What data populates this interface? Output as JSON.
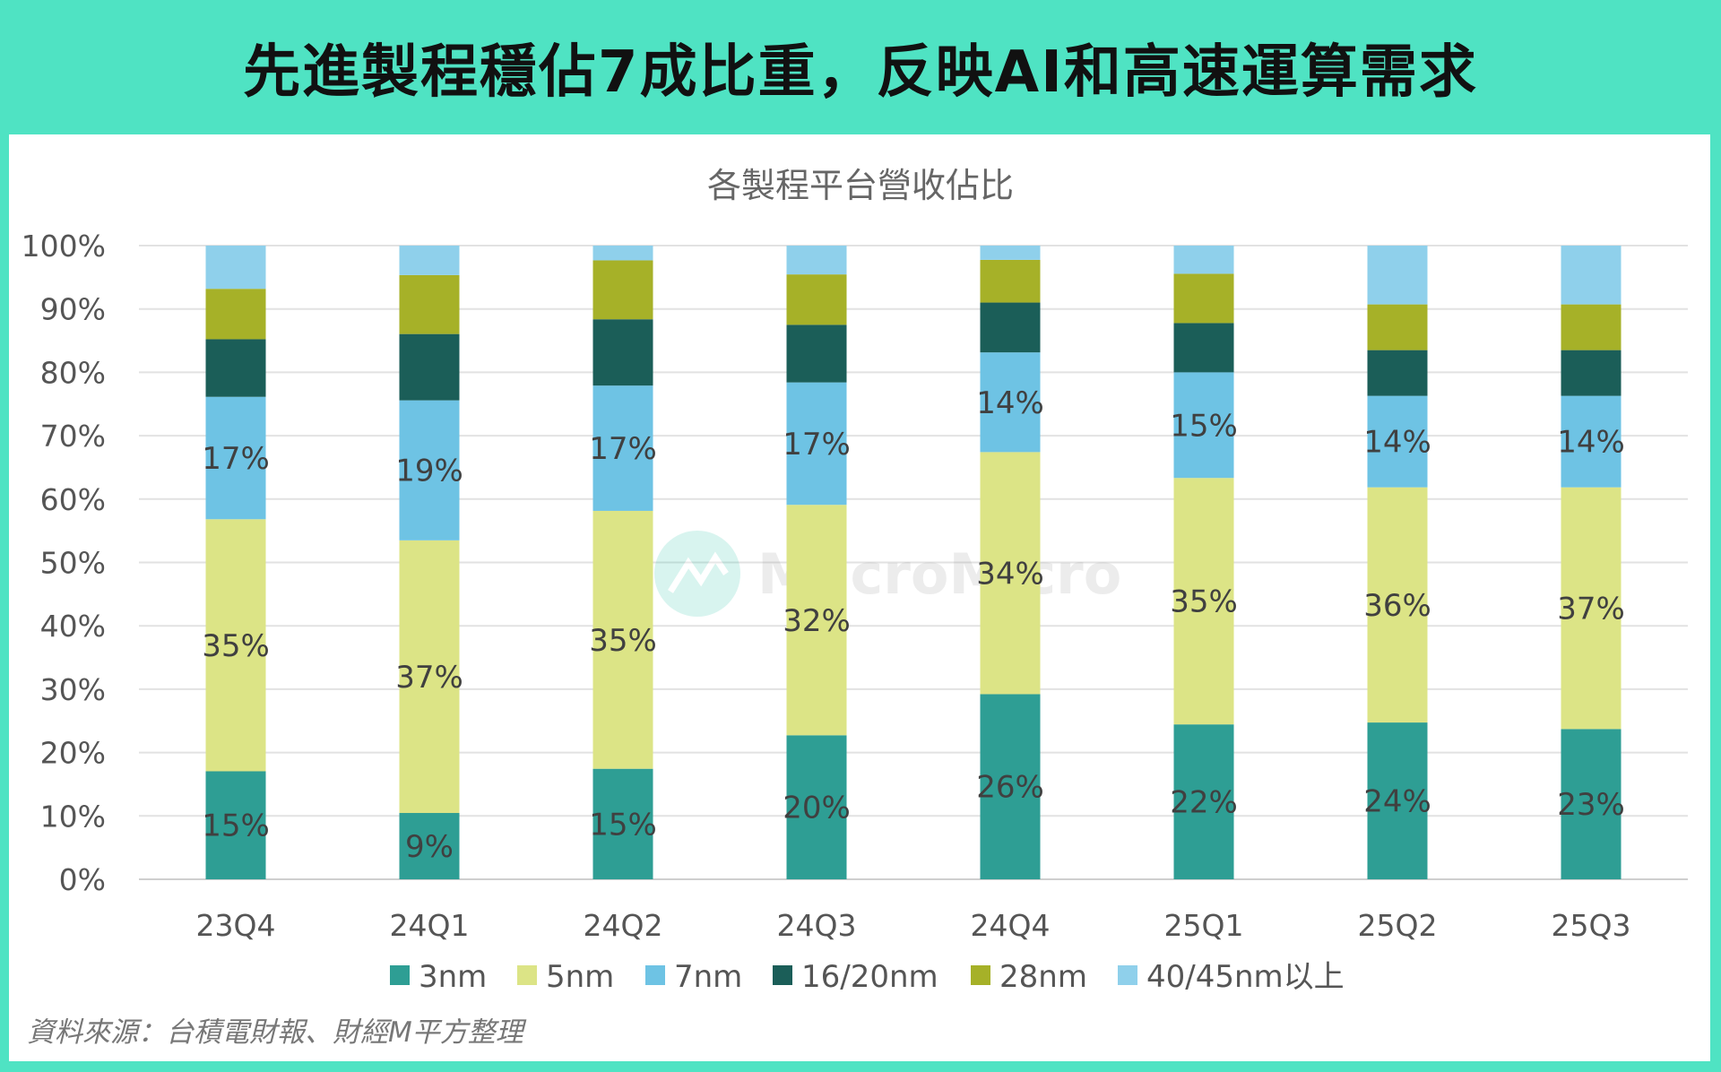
{
  "title": "先進製程穩佔7成比重，反映AI和高速運算需求",
  "source": "資料來源：台積電財報、財經M平方整理",
  "watermark": "MacroMicro",
  "colors": {
    "border": "#4fe3c3"
  },
  "chart_data": {
    "type": "bar",
    "stacked": "100%",
    "title": "各製程平台營收佔比",
    "categories": [
      "23Q4",
      "24Q1",
      "24Q2",
      "24Q3",
      "24Q4",
      "25Q1",
      "25Q2",
      "25Q3"
    ],
    "ylim": [
      0,
      100
    ],
    "yticks": [
      "0%",
      "10%",
      "20%",
      "30%",
      "40%",
      "50%",
      "60%",
      "70%",
      "80%",
      "90%",
      "100%"
    ],
    "grid": true,
    "legend": "bottom",
    "series": [
      {
        "name": "3nm",
        "color": "#2e9e94",
        "values": [
          15,
          9,
          15,
          20,
          26,
          22,
          24,
          23
        ],
        "labeled": true
      },
      {
        "name": "5nm",
        "color": "#dce486",
        "values": [
          35,
          37,
          35,
          32,
          34,
          35,
          36,
          37
        ],
        "labeled": true
      },
      {
        "name": "7nm",
        "color": "#6ec3e4",
        "values": [
          17,
          19,
          17,
          17,
          14,
          15,
          14,
          14
        ],
        "labeled": true
      },
      {
        "name": "16/20nm",
        "color": "#1b5e58",
        "values": [
          8,
          9,
          9,
          8,
          7,
          7,
          7,
          7
        ],
        "labeled": false
      },
      {
        "name": "28nm",
        "color": "#a6b128",
        "values": [
          7,
          8,
          8,
          7,
          6,
          7,
          7,
          7
        ],
        "labeled": false
      },
      {
        "name": "40/45nm以上",
        "color": "#8fd0eb",
        "values": [
          6,
          4,
          2,
          4,
          2,
          4,
          9,
          9
        ],
        "labeled": false
      }
    ]
  }
}
